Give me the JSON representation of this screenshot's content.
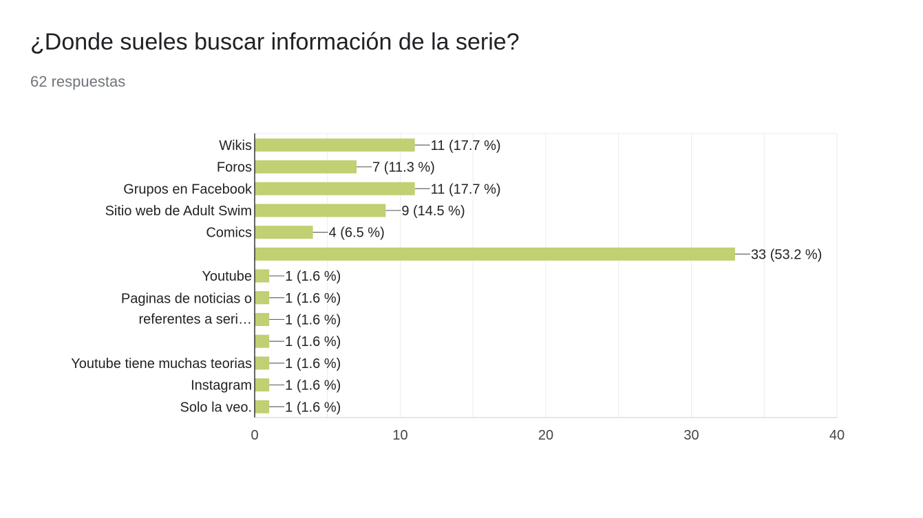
{
  "header": {
    "title": "¿Donde sueles buscar información de la serie?",
    "responses": "62 respuestas"
  },
  "colors": {
    "bar": "#c0d072",
    "grid": "#ebebeb",
    "axis": "#333333",
    "text": "#222222",
    "tick_text": "#444444",
    "leader": "#666666"
  },
  "chart_data": {
    "type": "bar",
    "orientation": "horizontal",
    "xlim": [
      0,
      40
    ],
    "xticks": [
      0,
      10,
      20,
      30,
      40
    ],
    "grid": true,
    "rows": [
      {
        "label": [
          "Wikis"
        ],
        "value": 11,
        "data_label": "11 (17.7 %)"
      },
      {
        "label": [
          "Foros"
        ],
        "value": 7,
        "data_label": "7 (11.3 %)"
      },
      {
        "label": [
          "Grupos en Facebook"
        ],
        "value": 11,
        "data_label": "11 (17.7 %)"
      },
      {
        "label": [
          "Sitio web de Adult Swim"
        ],
        "value": 9,
        "data_label": "9 (14.5 %)"
      },
      {
        "label": [
          "Comics"
        ],
        "value": 4,
        "data_label": "4 (6.5 %)"
      },
      {
        "label": [],
        "value": 33,
        "data_label": "33 (53.2 %)"
      },
      {
        "label": [
          "Youtube"
        ],
        "value": 1,
        "data_label": "1 (1.6 %)"
      },
      {
        "label": [],
        "value": 1,
        "data_label": "1 (1.6 %)"
      },
      {
        "label": [],
        "value": 1,
        "data_label": "1 (1.6 %)"
      },
      {
        "label": [],
        "value": 1,
        "data_label": "1 (1.6 %)"
      },
      {
        "label": [
          "Youtube tiene muchas teorias"
        ],
        "value": 1,
        "data_label": "1 (1.6 %)"
      },
      {
        "label": [
          "Instagram"
        ],
        "value": 1,
        "data_label": "1 (1.6 %)"
      },
      {
        "label": [
          "Solo la veo."
        ],
        "value": 1,
        "data_label": "1 (1.6 %)"
      }
    ],
    "spanning_label": [
      "Paginas de noticias o",
      "referentes a seri…"
    ]
  }
}
